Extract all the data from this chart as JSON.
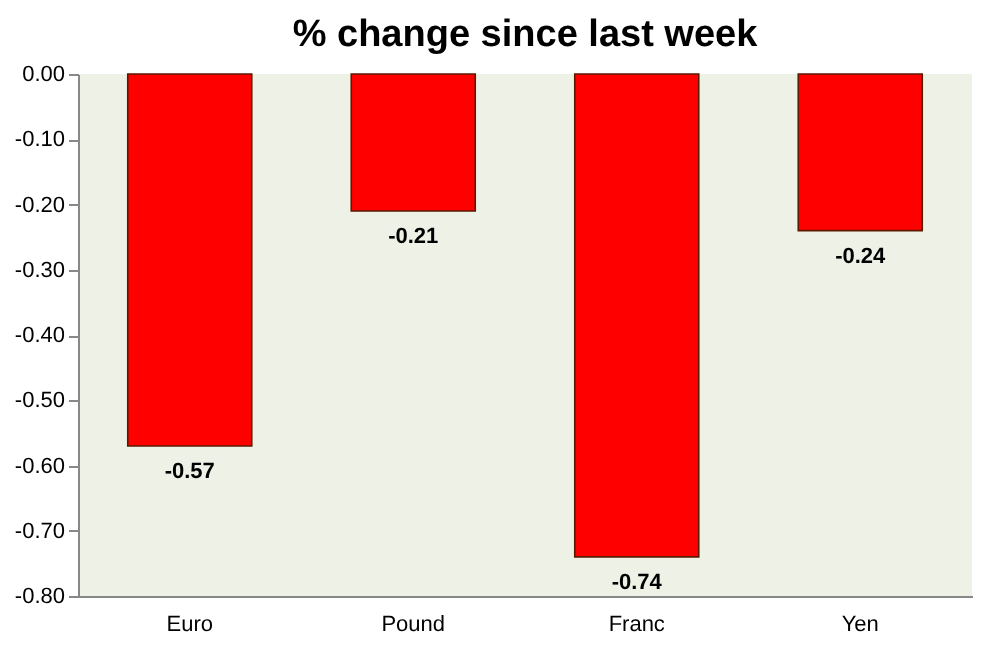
{
  "chart_data": {
    "type": "bar",
    "title": "% change since last week",
    "categories": [
      "Euro",
      "Pound",
      "Franc",
      "Yen"
    ],
    "values": [
      -0.57,
      -0.21,
      -0.74,
      -0.24
    ],
    "color": "#ff0000",
    "ylim": [
      -0.8,
      0
    ],
    "yticks": [
      {
        "value": 0,
        "label": "0.00"
      },
      {
        "value": -0.1,
        "label": "-0.10"
      },
      {
        "value": -0.2,
        "label": "-0.20"
      },
      {
        "value": -0.3,
        "label": "-0.30"
      },
      {
        "value": -0.4,
        "label": "-0.40"
      },
      {
        "value": -0.5,
        "label": "-0.50"
      },
      {
        "value": -0.6,
        "label": "-0.60"
      },
      {
        "value": -0.7,
        "label": "-0.70"
      },
      {
        "value": -0.8,
        "label": "-0.80"
      }
    ],
    "data_labels": true,
    "grid": false
  }
}
